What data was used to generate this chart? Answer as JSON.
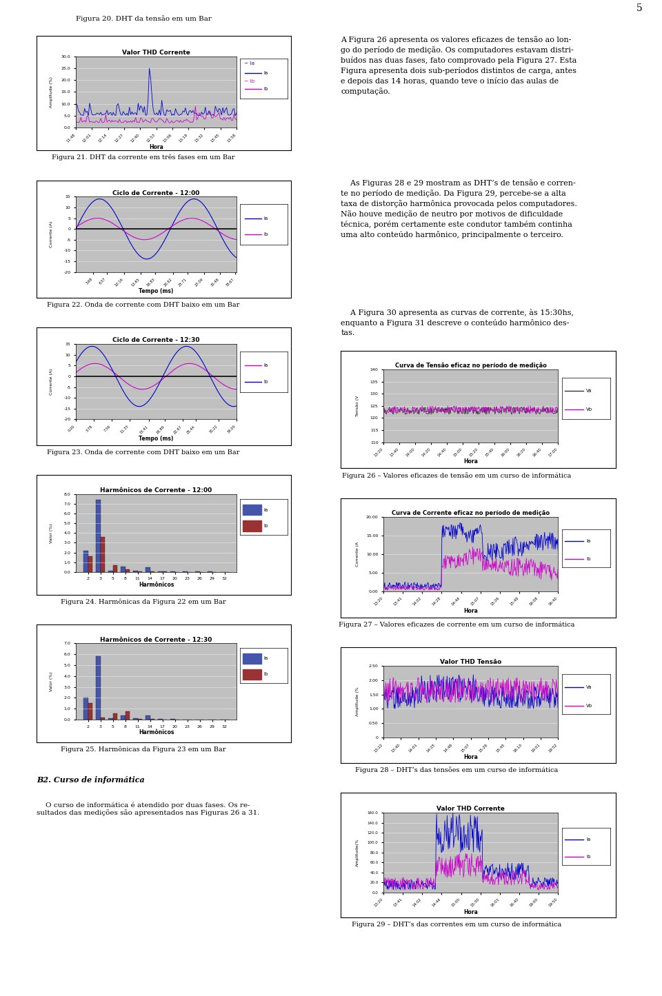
{
  "page_number": "5",
  "fig20_caption": "Figura 20. DHT da tensão em um Bar",
  "fig21_caption": "Figura 21. DHT da corrente em três fases em um Bar",
  "fig22_caption": "Figura 22. Onda de corrente com DHT baixo em um Bar",
  "fig23_caption": "Figura 23. Onda de corrente com DHT baixo em um Bar",
  "fig24_caption": "Figura 24. Harmônicas da Figura 22 em um Bar",
  "fig25_caption": "Figura 25. Harmônicas da Figura 23 em um Bar",
  "fig26_caption": "Figura 26 – Valores eficazes de tensão em um curso de informática",
  "fig27_caption": "Figura 27 – Valores eficazes de corrente em um curso de informática",
  "fig28_caption": "Figura 28 – DHT’s das tensões em um curso de informática",
  "fig29_caption": "Figura 29 – DHT’s das correntes em um curso de informática",
  "text_paragraph1": "A Figura 26 apresenta os valores eficazes de tensão ao lon-\ngo do período de medição. Os computadores estavam distri-\nbuídos nas duas fases, fato comprovado pela Figura 27. Esta\nFigura apresenta dois sub-períodos distintos de carga, antes\ne depois das 14 horas, quando teve o início das aulas de\ncomputação.",
  "text_paragraph2": "    As Figuras 28 e 29 mostram as DHT’s de tensão e corren-\nte no período de medição. Da Figura 29, percebe-se a alta\ntaxa de distorção harmônica provocada pelos computadores.\nNão houve medição de neutro por motivos de dificuldade\ntécnica, porém certamente este condutor também continha\numa alto conteúdo harmônico, principalmente o terceiro.",
  "text_paragraph3": "    A Figura 30 apresenta as curvas de corrente, às 15:30hs,\nenquanto a Figura 31 descreve o conteúdo harmônico des-\ntas.",
  "section_b2": "B2. Curso de informática",
  "section_b2_text": "    O curso de informática é atendido por duas fases. Os re-\nsultados das medições são apresentados nas Figuras 26 a 31.",
  "bg_color": "#c0c0c0",
  "blue_color": "#0000cd",
  "pink_color": "#cc00cc",
  "dark_blue": "#000080",
  "dark_red": "#8b0000",
  "bar_blue": "#4455aa",
  "bar_red": "#993333"
}
